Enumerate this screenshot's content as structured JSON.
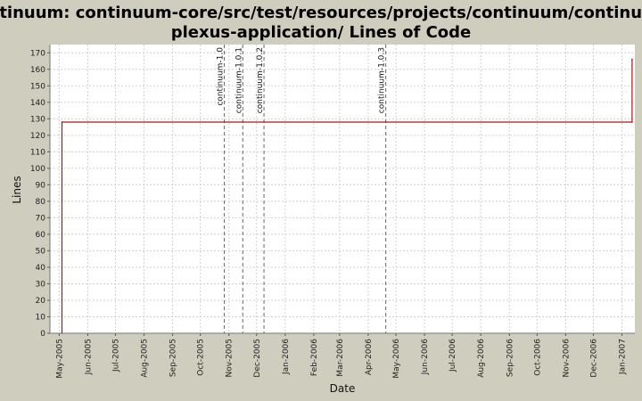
{
  "chart_data": {
    "type": "line",
    "title": "Continuum: continuum-core/src/test/resources/projects/continuum/continuum-plexus-application/ Lines of Code",
    "xlabel": "Date",
    "ylabel": "Lines",
    "ylim": [
      0,
      175
    ],
    "yticks": [
      0,
      10,
      20,
      30,
      40,
      50,
      60,
      70,
      80,
      90,
      100,
      110,
      120,
      130,
      140,
      150,
      160,
      170
    ],
    "xlim": [
      "2005-04-21",
      "2007-01-15"
    ],
    "xticks": [
      {
        "date": "2005-05-01",
        "label": "May-2005"
      },
      {
        "date": "2005-06-01",
        "label": "Jun-2005"
      },
      {
        "date": "2005-07-01",
        "label": "Jul-2005"
      },
      {
        "date": "2005-08-01",
        "label": "Aug-2005"
      },
      {
        "date": "2005-09-01",
        "label": "Sep-2005"
      },
      {
        "date": "2005-10-01",
        "label": "Oct-2005"
      },
      {
        "date": "2005-11-01",
        "label": "Nov-2005"
      },
      {
        "date": "2005-12-01",
        "label": "Dec-2005"
      },
      {
        "date": "2006-01-01",
        "label": "Jan-2006"
      },
      {
        "date": "2006-02-01",
        "label": "Feb-2006"
      },
      {
        "date": "2006-03-01",
        "label": "Mar-2006"
      },
      {
        "date": "2006-04-01",
        "label": "Apr-2006"
      },
      {
        "date": "2006-05-01",
        "label": "May-2006"
      },
      {
        "date": "2006-06-01",
        "label": "Jun-2006"
      },
      {
        "date": "2006-07-01",
        "label": "Jul-2006"
      },
      {
        "date": "2006-08-01",
        "label": "Aug-2006"
      },
      {
        "date": "2006-09-01",
        "label": "Sep-2006"
      },
      {
        "date": "2006-10-01",
        "label": "Oct-2006"
      },
      {
        "date": "2006-11-01",
        "label": "Nov-2006"
      },
      {
        "date": "2006-12-01",
        "label": "Dec-2006"
      },
      {
        "date": "2007-01-01",
        "label": "Jan-2007"
      }
    ],
    "series": [
      {
        "color": "#b0101a",
        "points": [
          {
            "x": "2005-05-04",
            "y": 0
          },
          {
            "x": "2005-05-04",
            "y": 128
          },
          {
            "x": "2007-01-12",
            "y": 128
          },
          {
            "x": "2007-01-12",
            "y": 166
          }
        ]
      }
    ],
    "markers": [
      {
        "date": "2005-10-27",
        "label": "continuum-1.0"
      },
      {
        "date": "2005-11-16",
        "label": "continuum-1.0.1"
      },
      {
        "date": "2005-12-09",
        "label": "continuum-1.0.2"
      },
      {
        "date": "2006-04-20",
        "label": "continuum-1.0.3"
      }
    ],
    "grid": true,
    "colors": {
      "background": "#cfcdbd",
      "plot_background": "#ffffff",
      "grid": "#d0d0d0",
      "marker": "#666666"
    }
  }
}
